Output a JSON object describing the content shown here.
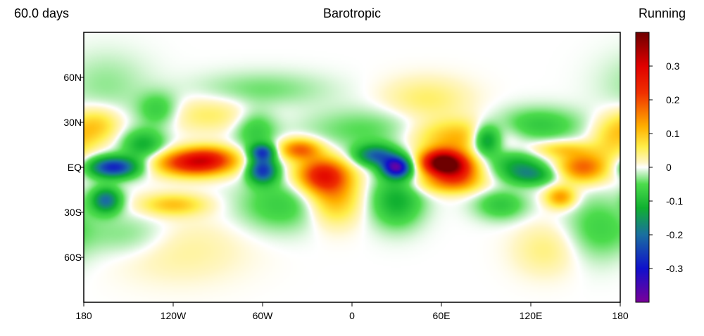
{
  "chart_data": {
    "type": "heatmap",
    "title": "Barotropic",
    "left_title": "60.0 days",
    "right_title": "Running",
    "x_ticks": [
      {
        "value": -180,
        "label": "180"
      },
      {
        "value": -120,
        "label": "120W"
      },
      {
        "value": -60,
        "label": "60W"
      },
      {
        "value": 0,
        "label": "0"
      },
      {
        "value": 60,
        "label": "60E"
      },
      {
        "value": 120,
        "label": "120E"
      },
      {
        "value": 180,
        "label": "180"
      }
    ],
    "y_ticks": [
      {
        "value": 60,
        "label": "60N"
      },
      {
        "value": 30,
        "label": "30N"
      },
      {
        "value": 0,
        "label": "EQ"
      },
      {
        "value": -30,
        "label": "30S"
      },
      {
        "value": -60,
        "label": "60S"
      }
    ],
    "xlim": [
      -180,
      180
    ],
    "ylim": [
      -90,
      90
    ],
    "colorbar": {
      "range": [
        -0.4,
        0.4
      ],
      "ticks": [
        {
          "value": 0.3,
          "label": "0.3"
        },
        {
          "value": 0.2,
          "label": "0.2"
        },
        {
          "value": 0.1,
          "label": "0.1"
        },
        {
          "value": 0,
          "label": "0"
        },
        {
          "value": -0.1,
          "label": "-0.1"
        },
        {
          "value": -0.2,
          "label": "-0.2"
        },
        {
          "value": -0.3,
          "label": "-0.3"
        }
      ],
      "colors": [
        {
          "v": -0.4,
          "c": "#7a0099"
        },
        {
          "v": -0.3,
          "c": "#1010cc"
        },
        {
          "v": -0.2,
          "c": "#1a6fa0"
        },
        {
          "v": -0.12,
          "c": "#10b030"
        },
        {
          "v": -0.05,
          "c": "#4cdc4c"
        },
        {
          "v": -0.015,
          "c": "#c8f2c8"
        },
        {
          "v": 0,
          "c": "#ffffff"
        },
        {
          "v": 0.015,
          "c": "#fff6c4"
        },
        {
          "v": 0.06,
          "c": "#ffee4a"
        },
        {
          "v": 0.12,
          "c": "#ffb000"
        },
        {
          "v": 0.22,
          "c": "#f03000"
        },
        {
          "v": 0.3,
          "c": "#e00000"
        },
        {
          "v": 0.4,
          "c": "#6e0000"
        }
      ]
    },
    "anomalies": [
      {
        "lon": 60,
        "lat": 3,
        "amp": 0.4,
        "sx": 10,
        "sy": 6
      },
      {
        "lon": 72,
        "lat": -2,
        "amp": 0.18,
        "sx": 10,
        "sy": 7
      },
      {
        "lon": 63,
        "lat": -11,
        "amp": 0.1,
        "sx": 16,
        "sy": 5
      },
      {
        "lon": 72,
        "lat": 20,
        "amp": 0.12,
        "sx": 22,
        "sy": 8
      },
      {
        "lon": 50,
        "lat": 45,
        "amp": 0.05,
        "sx": 20,
        "sy": 10
      },
      {
        "lon": 30,
        "lat": 0,
        "amp": -0.34,
        "sx": 7,
        "sy": 5
      },
      {
        "lon": 16,
        "lat": 8,
        "amp": -0.2,
        "sx": 10,
        "sy": 5
      },
      {
        "lon": 30,
        "lat": -22,
        "amp": -0.12,
        "sx": 12,
        "sy": 12
      },
      {
        "lon": 10,
        "lat": 25,
        "amp": -0.05,
        "sx": 30,
        "sy": 10
      },
      {
        "lon": -20,
        "lat": -5,
        "amp": 0.24,
        "sx": 12,
        "sy": 8
      },
      {
        "lon": -12,
        "lat": -20,
        "amp": 0.12,
        "sx": 12,
        "sy": 12
      },
      {
        "lon": -35,
        "lat": 12,
        "amp": 0.18,
        "sx": 10,
        "sy": 5
      },
      {
        "lon": -60,
        "lat": -2,
        "amp": -0.26,
        "sx": 7,
        "sy": 6
      },
      {
        "lon": -60,
        "lat": 10,
        "amp": -0.22,
        "sx": 6,
        "sy": 4
      },
      {
        "lon": -65,
        "lat": 25,
        "amp": -0.08,
        "sx": 10,
        "sy": 10
      },
      {
        "lon": -48,
        "lat": -25,
        "amp": -0.07,
        "sx": 20,
        "sy": 12
      },
      {
        "lon": -60,
        "lat": 52,
        "amp": -0.04,
        "sx": 30,
        "sy": 8
      },
      {
        "lon": -105,
        "lat": 3,
        "amp": 0.28,
        "sx": 18,
        "sy": 6
      },
      {
        "lon": -95,
        "lat": 8,
        "amp": 0.08,
        "sx": 12,
        "sy": 5
      },
      {
        "lon": -120,
        "lat": -25,
        "amp": 0.1,
        "sx": 15,
        "sy": 5
      },
      {
        "lon": -95,
        "lat": 35,
        "amp": 0.05,
        "sx": 25,
        "sy": 8
      },
      {
        "lon": -115,
        "lat": -55,
        "amp": 0.03,
        "sx": 30,
        "sy": 15
      },
      {
        "lon": -160,
        "lat": 0,
        "amp": -0.28,
        "sx": 12,
        "sy": 5
      },
      {
        "lon": -165,
        "lat": -22,
        "amp": -0.2,
        "sx": 7,
        "sy": 6
      },
      {
        "lon": -140,
        "lat": 15,
        "amp": -0.12,
        "sx": 10,
        "sy": 7
      },
      {
        "lon": -130,
        "lat": 38,
        "amp": -0.08,
        "sx": 10,
        "sy": 8
      },
      {
        "lon": -170,
        "lat": 28,
        "amp": 0.08,
        "sx": 10,
        "sy": 8
      },
      {
        "lon": -150,
        "lat": -45,
        "amp": -0.04,
        "sx": 20,
        "sy": 10
      },
      {
        "lon": -165,
        "lat": 55,
        "amp": -0.03,
        "sx": 20,
        "sy": 15
      },
      {
        "lon": 90,
        "lat": 18,
        "amp": -0.2,
        "sx": 7,
        "sy": 7
      },
      {
        "lon": 110,
        "lat": 3,
        "amp": -0.1,
        "sx": 12,
        "sy": 6
      },
      {
        "lon": 120,
        "lat": -5,
        "amp": -0.14,
        "sx": 12,
        "sy": 5
      },
      {
        "lon": 125,
        "lat": 28,
        "amp": -0.08,
        "sx": 20,
        "sy": 8
      },
      {
        "lon": 100,
        "lat": -25,
        "amp": -0.08,
        "sx": 12,
        "sy": 7
      },
      {
        "lon": 155,
        "lat": 0,
        "amp": 0.18,
        "sx": 12,
        "sy": 7
      },
      {
        "lon": 140,
        "lat": -20,
        "amp": 0.14,
        "sx": 7,
        "sy": 5
      },
      {
        "lon": 140,
        "lat": 12,
        "amp": 0.08,
        "sx": 14,
        "sy": 4
      },
      {
        "lon": 175,
        "lat": 20,
        "amp": 0.08,
        "sx": 10,
        "sy": 10
      },
      {
        "lon": 130,
        "lat": -55,
        "amp": 0.04,
        "sx": 15,
        "sy": 12
      },
      {
        "lon": 165,
        "lat": -40,
        "amp": -0.06,
        "sx": 15,
        "sy": 15
      }
    ]
  }
}
